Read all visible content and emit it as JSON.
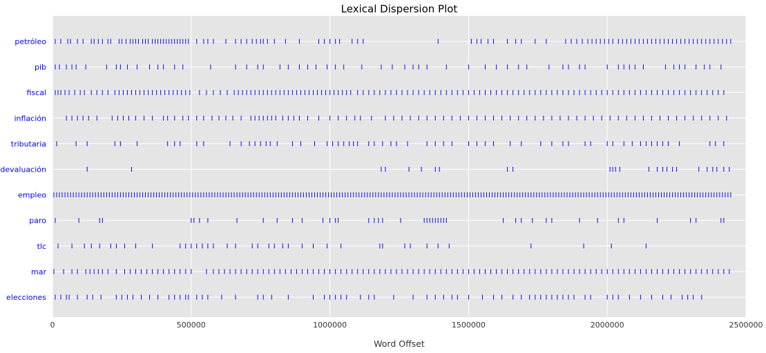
{
  "chart_data": {
    "type": "scatter",
    "title": "Lexical Dispersion Plot",
    "xlabel": "Word Offset",
    "ylabel": "",
    "xlim": [
      0,
      2500000
    ],
    "xticks": [
      0,
      500000,
      1000000,
      1500000,
      2000000,
      2500000
    ],
    "grid": true,
    "colors": {
      "plot_bg": "#e5e5e5",
      "grid": "#ffffff",
      "marker": "#0000ff",
      "word_label": "#0000ff",
      "text": "#333333"
    },
    "series": [
      {
        "name": "petróleo",
        "x": [
          10000,
          30000,
          55000,
          65000,
          90000,
          110000,
          140000,
          150000,
          165000,
          180000,
          200000,
          210000,
          240000,
          250000,
          265000,
          280000,
          290000,
          300000,
          310000,
          325000,
          335000,
          345000,
          360000,
          370000,
          380000,
          390000,
          400000,
          410000,
          420000,
          430000,
          440000,
          450000,
          460000,
          470000,
          480000,
          490000,
          520000,
          545000,
          560000,
          580000,
          625000,
          660000,
          680000,
          700000,
          720000,
          735000,
          750000,
          760000,
          775000,
          800000,
          840000,
          890000,
          960000,
          980000,
          1000000,
          1020000,
          1035000,
          1080000,
          1100000,
          1120000,
          1390000,
          1510000,
          1530000,
          1545000,
          1570000,
          1590000,
          1640000,
          1670000,
          1690000,
          1740000,
          1780000,
          1850000,
          1870000,
          1890000,
          1910000,
          1930000,
          1945000,
          1960000,
          1975000,
          1990000,
          2005000,
          2020000,
          2040000,
          2055000,
          2070000,
          2085000,
          2100000,
          2115000,
          2130000,
          2145000,
          2160000,
          2175000,
          2190000,
          2205000,
          2220000,
          2235000,
          2250000,
          2265000,
          2280000,
          2295000,
          2310000,
          2325000,
          2340000,
          2355000,
          2370000,
          2385000,
          2400000,
          2415000,
          2430000,
          2445000
        ]
      },
      {
        "name": "pib",
        "x": [
          10000,
          25000,
          50000,
          70000,
          85000,
          120000,
          195000,
          230000,
          245000,
          270000,
          305000,
          350000,
          380000,
          400000,
          440000,
          470000,
          570000,
          660000,
          700000,
          740000,
          760000,
          820000,
          850000,
          890000,
          920000,
          950000,
          990000,
          1020000,
          1050000,
          1115000,
          1185000,
          1225000,
          1270000,
          1300000,
          1320000,
          1350000,
          1420000,
          1500000,
          1560000,
          1600000,
          1640000,
          1680000,
          1710000,
          1790000,
          1840000,
          1860000,
          1900000,
          1920000,
          2000000,
          2040000,
          2060000,
          2080000,
          2100000,
          2130000,
          2210000,
          2240000,
          2260000,
          2280000,
          2320000,
          2350000,
          2370000,
          2410000
        ]
      },
      {
        "name": "fiscal",
        "x": [
          10000,
          20000,
          30000,
          45000,
          60000,
          80000,
          100000,
          115000,
          140000,
          160000,
          180000,
          200000,
          225000,
          240000,
          255000,
          270000,
          285000,
          300000,
          315000,
          330000,
          345000,
          360000,
          375000,
          390000,
          405000,
          420000,
          435000,
          450000,
          465000,
          480000,
          495000,
          530000,
          555000,
          580000,
          605000,
          630000,
          655000,
          670000,
          685000,
          700000,
          715000,
          730000,
          745000,
          760000,
          775000,
          790000,
          805000,
          820000,
          835000,
          850000,
          865000,
          880000,
          895000,
          910000,
          925000,
          940000,
          955000,
          970000,
          985000,
          1000000,
          1015000,
          1030000,
          1045000,
          1060000,
          1075000,
          1100000,
          1120000,
          1140000,
          1160000,
          1180000,
          1200000,
          1220000,
          1240000,
          1260000,
          1280000,
          1300000,
          1320000,
          1340000,
          1360000,
          1380000,
          1400000,
          1420000,
          1440000,
          1460000,
          1480000,
          1500000,
          1520000,
          1540000,
          1560000,
          1580000,
          1600000,
          1620000,
          1640000,
          1660000,
          1680000,
          1700000,
          1720000,
          1740000,
          1760000,
          1780000,
          1800000,
          1820000,
          1840000,
          1860000,
          1880000,
          1900000,
          1920000,
          1940000,
          1960000,
          1980000,
          2000000,
          2020000,
          2040000,
          2060000,
          2080000,
          2100000,
          2120000,
          2140000,
          2160000,
          2180000,
          2200000,
          2220000,
          2240000,
          2260000,
          2280000,
          2300000,
          2320000,
          2340000,
          2360000,
          2380000,
          2400000,
          2420000
        ]
      },
      {
        "name": "inflación",
        "x": [
          50000,
          70000,
          90000,
          110000,
          130000,
          160000,
          215000,
          235000,
          255000,
          275000,
          300000,
          330000,
          360000,
          400000,
          415000,
          440000,
          470000,
          490000,
          520000,
          545000,
          575000,
          600000,
          625000,
          650000,
          680000,
          715000,
          730000,
          745000,
          760000,
          775000,
          790000,
          805000,
          830000,
          850000,
          870000,
          890000,
          920000,
          960000,
          1000000,
          1030000,
          1060000,
          1090000,
          1110000,
          1150000,
          1200000,
          1230000,
          1260000,
          1290000,
          1320000,
          1350000,
          1380000,
          1410000,
          1440000,
          1470000,
          1500000,
          1530000,
          1560000,
          1590000,
          1620000,
          1650000,
          1680000,
          1710000,
          1740000,
          1770000,
          1800000,
          1830000,
          1860000,
          1890000,
          1920000,
          1950000,
          1980000,
          2010000,
          2040000,
          2070000,
          2100000,
          2130000,
          2160000,
          2190000,
          2220000,
          2250000,
          2280000,
          2310000,
          2340000,
          2370000,
          2400000,
          2430000
        ]
      },
      {
        "name": "tributaria",
        "x": [
          15000,
          85000,
          125000,
          225000,
          245000,
          305000,
          415000,
          440000,
          460000,
          520000,
          545000,
          640000,
          680000,
          710000,
          730000,
          750000,
          770000,
          785000,
          810000,
          865000,
          895000,
          945000,
          990000,
          1010000,
          1030000,
          1050000,
          1070000,
          1085000,
          1100000,
          1140000,
          1160000,
          1190000,
          1220000,
          1240000,
          1280000,
          1350000,
          1380000,
          1410000,
          1440000,
          1500000,
          1530000,
          1560000,
          1590000,
          1650000,
          1690000,
          1760000,
          1800000,
          1840000,
          1860000,
          1920000,
          1940000,
          2000000,
          2020000,
          2060000,
          2090000,
          2120000,
          2140000,
          2160000,
          2180000,
          2200000,
          2220000,
          2260000,
          2370000,
          2390000,
          2420000
        ]
      },
      {
        "name": "devaluación",
        "x": [
          125000,
          285000,
          1185000,
          1200000,
          1285000,
          1330000,
          1380000,
          1395000,
          1640000,
          1660000,
          2010000,
          2020000,
          2030000,
          2045000,
          2150000,
          2180000,
          2200000,
          2215000,
          2235000,
          2250000,
          2330000,
          2360000,
          2380000,
          2395000,
          2420000,
          2440000
        ]
      },
      {
        "name": "empleo",
        "x": [
          5000,
          15000,
          25000,
          35000,
          45000,
          55000,
          65000,
          75000,
          85000,
          95000,
          105000,
          115000,
          125000,
          135000,
          145000,
          155000,
          165000,
          175000,
          185000,
          195000,
          205000,
          215000,
          225000,
          235000,
          245000,
          255000,
          265000,
          275000,
          285000,
          295000,
          305000,
          315000,
          325000,
          335000,
          345000,
          355000,
          365000,
          375000,
          385000,
          395000,
          405000,
          415000,
          425000,
          435000,
          445000,
          455000,
          465000,
          475000,
          485000,
          495000,
          505000,
          515000,
          525000,
          535000,
          545000,
          555000,
          565000,
          575000,
          585000,
          595000,
          605000,
          615000,
          625000,
          635000,
          645000,
          655000,
          665000,
          675000,
          685000,
          695000,
          705000,
          715000,
          725000,
          735000,
          745000,
          755000,
          765000,
          775000,
          785000,
          795000,
          805000,
          815000,
          825000,
          835000,
          845000,
          855000,
          865000,
          875000,
          885000,
          895000,
          905000,
          915000,
          925000,
          935000,
          945000,
          955000,
          965000,
          975000,
          985000,
          995000,
          1005000,
          1015000,
          1025000,
          1035000,
          1045000,
          1055000,
          1065000,
          1075000,
          1085000,
          1095000,
          1105000,
          1115000,
          1125000,
          1135000,
          1145000,
          1155000,
          1165000,
          1175000,
          1185000,
          1195000,
          1205000,
          1215000,
          1225000,
          1235000,
          1245000,
          1255000,
          1265000,
          1275000,
          1285000,
          1295000,
          1305000,
          1315000,
          1325000,
          1335000,
          1345000,
          1355000,
          1365000,
          1375000,
          1385000,
          1395000,
          1405000,
          1415000,
          1425000,
          1435000,
          1445000,
          1455000,
          1465000,
          1475000,
          1485000,
          1495000,
          1505000,
          1515000,
          1525000,
          1535000,
          1545000,
          1555000,
          1565000,
          1575000,
          1585000,
          1595000,
          1605000,
          1615000,
          1625000,
          1635000,
          1645000,
          1655000,
          1665000,
          1675000,
          1685000,
          1695000,
          1705000,
          1715000,
          1725000,
          1735000,
          1745000,
          1755000,
          1765000,
          1775000,
          1785000,
          1795000,
          1805000,
          1815000,
          1825000,
          1835000,
          1845000,
          1855000,
          1865000,
          1875000,
          1885000,
          1895000,
          1905000,
          1915000,
          1925000,
          1935000,
          1945000,
          1955000,
          1965000,
          1975000,
          1985000,
          1995000,
          2005000,
          2015000,
          2025000,
          2035000,
          2045000,
          2055000,
          2065000,
          2075000,
          2085000,
          2095000,
          2105000,
          2115000,
          2125000,
          2135000,
          2145000,
          2155000,
          2165000,
          2175000,
          2185000,
          2195000,
          2205000,
          2215000,
          2225000,
          2235000,
          2245000,
          2255000,
          2265000,
          2275000,
          2285000,
          2295000,
          2305000,
          2315000,
          2325000,
          2335000,
          2345000,
          2355000,
          2365000,
          2375000,
          2385000,
          2395000,
          2405000,
          2415000,
          2425000,
          2435000,
          2445000
        ]
      },
      {
        "name": "paro",
        "x": [
          10000,
          95000,
          170000,
          180000,
          500000,
          510000,
          530000,
          560000,
          665000,
          760000,
          810000,
          865000,
          900000,
          975000,
          1000000,
          1020000,
          1030000,
          1140000,
          1160000,
          1175000,
          1190000,
          1255000,
          1340000,
          1350000,
          1360000,
          1370000,
          1380000,
          1390000,
          1400000,
          1410000,
          1420000,
          1625000,
          1670000,
          1690000,
          1730000,
          1780000,
          1800000,
          1900000,
          1965000,
          2040000,
          2060000,
          2180000,
          2300000,
          2320000,
          2410000,
          2420000
        ]
      },
      {
        "name": "tlc",
        "x": [
          20000,
          70000,
          115000,
          140000,
          170000,
          210000,
          230000,
          260000,
          300000,
          360000,
          460000,
          480000,
          500000,
          520000,
          540000,
          560000,
          580000,
          630000,
          660000,
          720000,
          740000,
          780000,
          800000,
          830000,
          850000,
          900000,
          940000,
          990000,
          1040000,
          1180000,
          1190000,
          1270000,
          1290000,
          1350000,
          1390000,
          1430000,
          1725000,
          1915000,
          2015000,
          2140000
        ]
      },
      {
        "name": "mar",
        "x": [
          5000,
          40000,
          70000,
          90000,
          120000,
          135000,
          150000,
          165000,
          180000,
          200000,
          230000,
          260000,
          280000,
          300000,
          320000,
          340000,
          360000,
          380000,
          400000,
          420000,
          440000,
          460000,
          480000,
          500000,
          555000,
          580000,
          600000,
          620000,
          640000,
          660000,
          680000,
          700000,
          720000,
          740000,
          760000,
          780000,
          800000,
          820000,
          840000,
          860000,
          880000,
          900000,
          920000,
          940000,
          960000,
          980000,
          1000000,
          1020000,
          1040000,
          1060000,
          1080000,
          1100000,
          1120000,
          1140000,
          1160000,
          1180000,
          1200000,
          1220000,
          1240000,
          1260000,
          1280000,
          1300000,
          1320000,
          1340000,
          1360000,
          1380000,
          1400000,
          1420000,
          1440000,
          1460000,
          1480000,
          1500000,
          1520000,
          1540000,
          1560000,
          1580000,
          1600000,
          1620000,
          1640000,
          1660000,
          1680000,
          1700000,
          1720000,
          1740000,
          1760000,
          1780000,
          1800000,
          1820000,
          1840000,
          1860000,
          1880000,
          1900000,
          1920000,
          1940000,
          1960000,
          1980000,
          2000000,
          2020000,
          2040000,
          2060000,
          2080000,
          2100000,
          2120000,
          2140000,
          2160000,
          2180000,
          2200000,
          2220000,
          2240000,
          2260000,
          2280000,
          2300000,
          2320000,
          2340000,
          2360000,
          2380000,
          2400000,
          2420000,
          2440000
        ]
      },
      {
        "name": "elecciones",
        "x": [
          10000,
          30000,
          50000,
          60000,
          90000,
          125000,
          145000,
          175000,
          230000,
          250000,
          270000,
          290000,
          320000,
          350000,
          380000,
          420000,
          440000,
          460000,
          480000,
          490000,
          520000,
          540000,
          560000,
          610000,
          660000,
          740000,
          760000,
          790000,
          850000,
          940000,
          980000,
          1000000,
          1020000,
          1040000,
          1060000,
          1110000,
          1140000,
          1160000,
          1230000,
          1300000,
          1350000,
          1380000,
          1410000,
          1440000,
          1460000,
          1500000,
          1550000,
          1590000,
          1620000,
          1660000,
          1690000,
          1720000,
          1740000,
          1760000,
          1780000,
          1800000,
          1820000,
          1840000,
          1860000,
          1880000,
          1920000,
          1940000,
          2000000,
          2020000,
          2040000,
          2080000,
          2120000,
          2160000,
          2200000,
          2230000,
          2270000,
          2290000,
          2310000,
          2340000
        ]
      }
    ]
  }
}
